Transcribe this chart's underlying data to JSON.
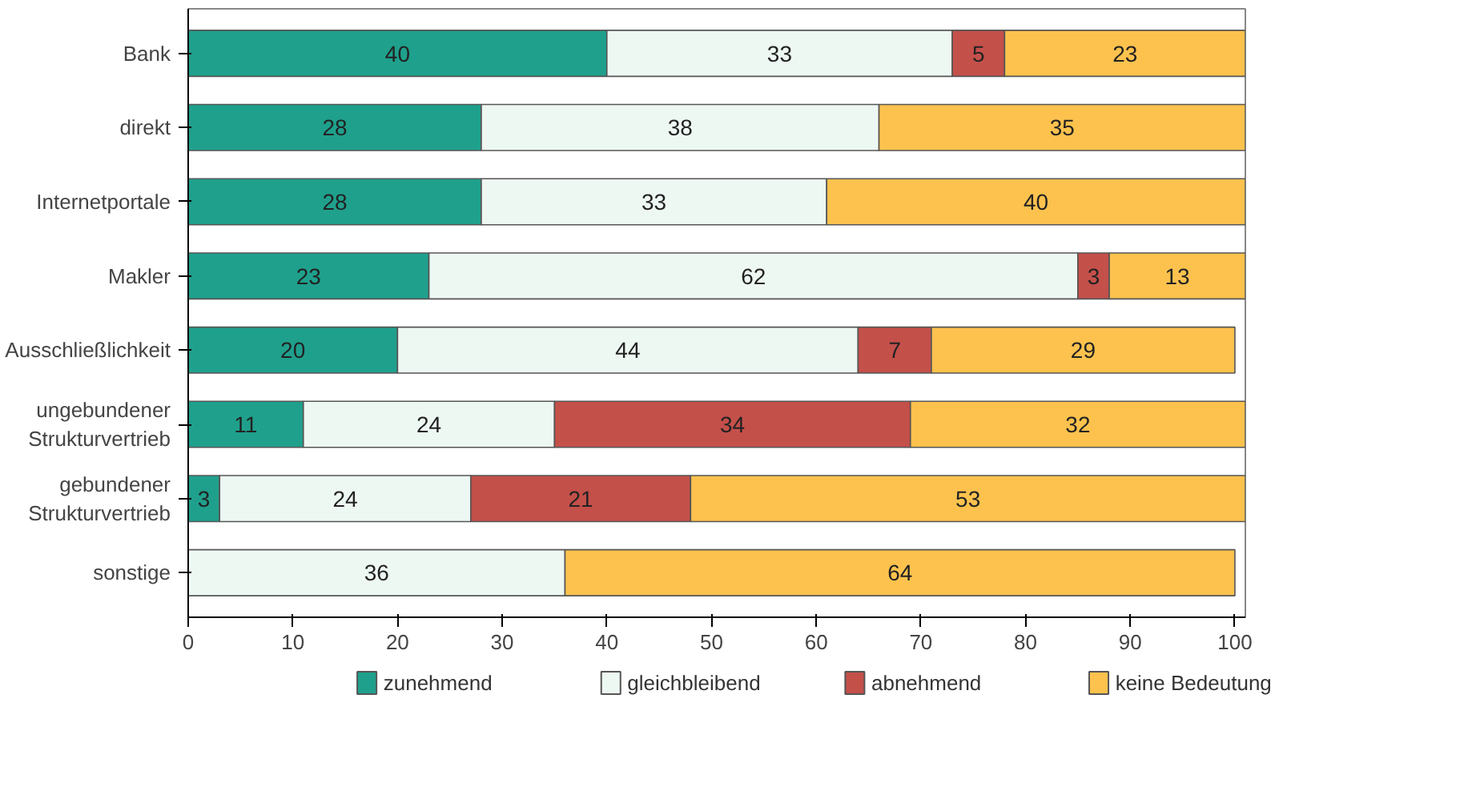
{
  "chart_data": {
    "type": "bar",
    "orientation": "horizontal",
    "stacked": true,
    "data_labels": true,
    "grid": false,
    "legend": "bottom",
    "categories": [
      "Bank",
      "direkt",
      "Internetportale",
      "Makler",
      "Ausschließlichkeit",
      "ungebundener\nStrukturvertrieb",
      "gebundener\nStrukturvertrieb",
      "sonstige"
    ],
    "xlim": [
      0,
      101
    ],
    "xticks": [
      0,
      10,
      20,
      30,
      40,
      50,
      60,
      70,
      80,
      90,
      100
    ],
    "series": [
      {
        "name": "zunehmend",
        "color": "#1fa08c",
        "values": [
          40,
          28,
          28,
          23,
          20,
          11,
          3,
          null
        ]
      },
      {
        "name": "gleichbleibend",
        "color": "#eef8f3",
        "values": [
          33,
          38,
          33,
          62,
          44,
          24,
          24,
          36
        ]
      },
      {
        "name": "abnehmend",
        "color": "#c4504a",
        "values": [
          5,
          null,
          null,
          3,
          7,
          34,
          21,
          null
        ]
      },
      {
        "name": "keine Bedeutung",
        "color": "#fdc24e",
        "values": [
          23,
          35,
          40,
          13,
          29,
          32,
          53,
          64
        ]
      }
    ]
  }
}
